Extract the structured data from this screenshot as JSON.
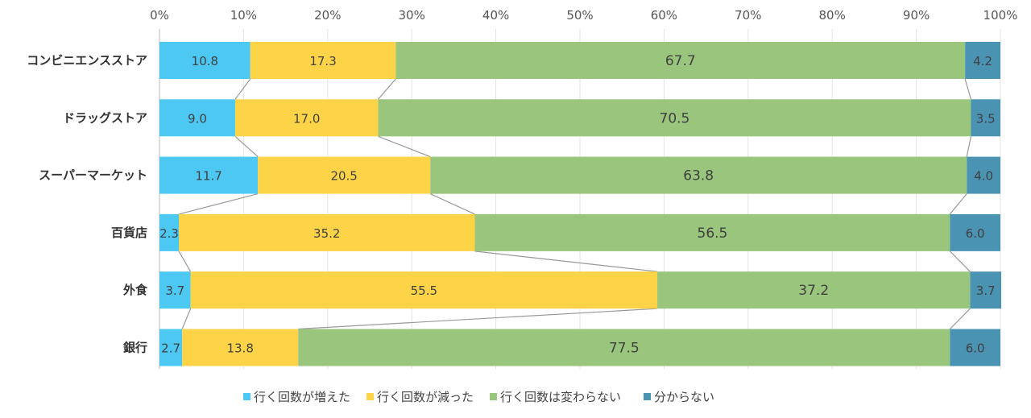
{
  "chart_data": {
    "type": "bar",
    "orientation": "horizontal",
    "stacked": "percent",
    "title": "",
    "xlabel": "",
    "ylabel": "",
    "xlim": [
      0,
      100
    ],
    "x_ticks": [
      "0%",
      "10%",
      "20%",
      "30%",
      "40%",
      "50%",
      "60%",
      "70%",
      "80%",
      "90%",
      "100%"
    ],
    "x_axis_position": "top",
    "grid": true,
    "series_lines": true,
    "legend": "bottom",
    "categories": [
      "コンビニエンスストア",
      "ドラッグストア",
      "スーパーマーケット",
      "百貨店",
      "外食",
      "銀行"
    ],
    "series": [
      {
        "name": "行く回数が増えた",
        "color": "#4cc8f3",
        "values": [
          10.8,
          9.0,
          11.7,
          2.3,
          3.7,
          2.7
        ]
      },
      {
        "name": "行く回数が減った",
        "color": "#fdd447",
        "values": [
          17.3,
          17.0,
          20.5,
          35.2,
          55.5,
          13.8
        ]
      },
      {
        "name": "行く回数は変わらない",
        "color": "#9ac57c",
        "values": [
          67.7,
          70.5,
          63.8,
          56.5,
          37.2,
          77.5
        ]
      },
      {
        "name": "分からない",
        "color": "#4a93b3",
        "values": [
          4.2,
          3.5,
          4.0,
          6.0,
          3.7,
          6.0
        ]
      }
    ]
  }
}
